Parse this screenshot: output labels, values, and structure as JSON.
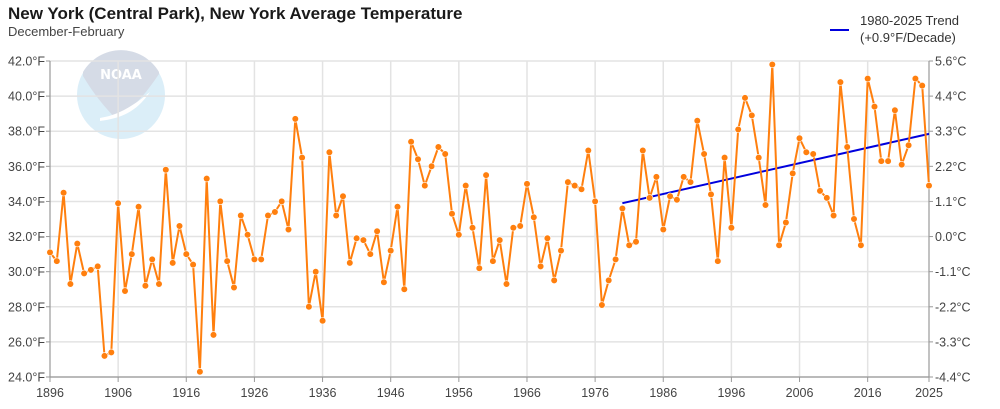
{
  "header": {
    "title": "New York (Central Park), New York Average Temperature",
    "subtitle": "December-February"
  },
  "legend": {
    "line1": "1980-2025 Trend",
    "line2": "(+0.9°F/Decade)"
  },
  "logo": {
    "text": "NOAA"
  },
  "colors": {
    "series": "#ff7f0e",
    "trend": "#0000dd",
    "grid": "#e3e3e3",
    "axis": "#999999",
    "logo_upper": "#d5dbe6",
    "logo_lower": "#dbeef8"
  },
  "chart_data": {
    "type": "line",
    "title": "New York (Central Park), New York Average Temperature",
    "subtitle": "December-February",
    "xlabel": "",
    "ylabel": "",
    "xlim": [
      1896,
      2025
    ],
    "ylim": [
      24,
      42
    ],
    "x_ticks": [
      "1896",
      "1906",
      "1916",
      "1926",
      "1936",
      "1946",
      "1956",
      "1966",
      "1976",
      "1986",
      "1996",
      "2006",
      "2016",
      "2025"
    ],
    "y_ticks_left": [
      "24.0°F",
      "26.0°F",
      "28.0°F",
      "30.0°F",
      "32.0°F",
      "34.0°F",
      "36.0°F",
      "38.0°F",
      "40.0°F",
      "42.0°F"
    ],
    "y_ticks_right": [
      "-4.4°C",
      "-3.3°C",
      "-2.2°C",
      "-1.1°C",
      "0.0°C",
      "1.1°C",
      "2.2°C",
      "3.3°C",
      "4.4°C",
      "5.6°C"
    ],
    "grid": true,
    "legend_position": "top-right",
    "series": [
      {
        "name": "Average Temperature",
        "x_start": 1896,
        "values": [
          31.1,
          30.6,
          34.5,
          29.3,
          31.6,
          29.9,
          30.1,
          30.3,
          25.2,
          25.4,
          33.9,
          28.9,
          31.0,
          33.7,
          29.2,
          30.7,
          29.3,
          35.8,
          30.5,
          32.6,
          31.0,
          30.4,
          24.3,
          35.3,
          26.4,
          34.0,
          30.6,
          29.1,
          33.2,
          32.1,
          30.7,
          30.7,
          33.2,
          33.4,
          34.0,
          32.4,
          38.7,
          36.5,
          28.0,
          30.0,
          27.2,
          36.8,
          33.2,
          34.3,
          30.5,
          31.9,
          31.8,
          31.0,
          32.3,
          29.4,
          31.2,
          33.7,
          29.0,
          37.4,
          36.4,
          34.9,
          36.0,
          37.1,
          36.7,
          33.3,
          32.1,
          34.9,
          32.5,
          30.2,
          35.5,
          30.6,
          31.8,
          29.3,
          32.5,
          32.6,
          35.0,
          33.1,
          30.3,
          31.9,
          29.5,
          31.2,
          35.1,
          34.9,
          34.7,
          36.9,
          34.0,
          28.1,
          29.5,
          30.7,
          33.6,
          31.5,
          31.7,
          36.9,
          34.2,
          35.4,
          32.4,
          34.3,
          34.1,
          35.4,
          35.1,
          38.6,
          36.7,
          34.4,
          30.6,
          36.5,
          32.5,
          38.1,
          39.9,
          38.9,
          36.5,
          33.8,
          41.8,
          31.5,
          32.8,
          35.6,
          37.6,
          36.8,
          36.7,
          34.6,
          34.2,
          33.2,
          40.8,
          37.1,
          33.0,
          31.5,
          41.0,
          39.4,
          36.3,
          36.3,
          39.2,
          36.1,
          37.2,
          41.0,
          40.6,
          34.9
        ]
      },
      {
        "name": "1980-2025 Trend (+0.9°F/Decade)",
        "x": [
          1980,
          2025
        ],
        "values": [
          33.9,
          37.85
        ]
      }
    ]
  }
}
